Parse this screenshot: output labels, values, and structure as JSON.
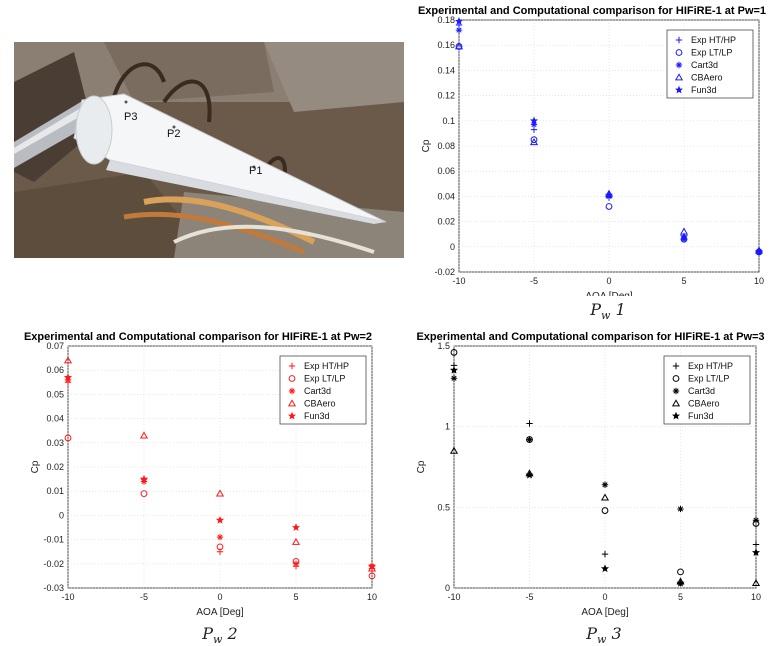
{
  "photo": {
    "labels": [
      "P3",
      "P2",
      "P1"
    ]
  },
  "captions": [
    "Pw 1",
    "Pw 2",
    "Pw 3"
  ],
  "chart_data": [
    {
      "type": "scatter",
      "title": "Experimental and Computational comparison for HIFiRE-1 at Pw=1",
      "xlabel": "AOA [Deg]",
      "ylabel": "Cp",
      "xlim": [
        -10,
        10
      ],
      "ylim": [
        -0.02,
        0.18
      ],
      "xticks": [
        "-10",
        "-5",
        "0",
        "5",
        "10"
      ],
      "yticks": [
        "-0.02",
        "0",
        "0.02",
        "0.04",
        "0.06",
        "0.08",
        "0.1",
        "0.12",
        "0.14",
        "0.16",
        "0.18"
      ],
      "grid": true,
      "legend": "top-right",
      "color": "#1a1aff",
      "x": [
        -10,
        -5,
        0,
        5,
        10
      ],
      "series": [
        {
          "name": "Exp HT/HP",
          "marker": "plus",
          "values": [
            0.176,
            0.093,
            0.039,
            0.006,
            -0.005
          ]
        },
        {
          "name": "Exp LT/LP",
          "marker": "circle",
          "values": [
            0.159,
            0.085,
            0.032,
            0.006,
            -0.004
          ]
        },
        {
          "name": "Cart3d",
          "marker": "asterisk",
          "values": [
            0.172,
            0.097,
            0.04,
            0.006,
            -0.004
          ]
        },
        {
          "name": "CBAero",
          "marker": "triangle",
          "values": [
            0.159,
            0.083,
            0.042,
            0.012,
            -0.003
          ]
        },
        {
          "name": "Fun3d",
          "marker": "star",
          "values": [
            0.179,
            0.1,
            0.041,
            0.008,
            -0.004
          ]
        }
      ]
    },
    {
      "type": "scatter",
      "title": "Experimental and Computational comparison for HIFiRE-1 at Pw=2",
      "xlabel": "AOA [Deg]",
      "ylabel": "Cp",
      "xlim": [
        -10,
        10
      ],
      "ylim": [
        -0.03,
        0.07
      ],
      "xticks": [
        "-10",
        "-5",
        "0",
        "5",
        "10"
      ],
      "yticks": [
        "-0.03",
        "-0.02",
        "-0.01",
        "0",
        "0.01",
        "0.02",
        "0.03",
        "0.04",
        "0.05",
        "0.06",
        "0.07"
      ],
      "grid": true,
      "legend": "top-right",
      "color": "#ff1a1a",
      "x": [
        -10,
        -5,
        0,
        5,
        10
      ],
      "series": [
        {
          "name": "Exp HT/HP",
          "marker": "plus",
          "values": [
            0.055,
            0.015,
            -0.015,
            -0.021,
            -0.022
          ]
        },
        {
          "name": "Exp LT/LP",
          "marker": "circle",
          "values": [
            0.032,
            0.009,
            -0.013,
            -0.019,
            -0.025
          ]
        },
        {
          "name": "Cart3d",
          "marker": "asterisk",
          "values": [
            0.056,
            0.014,
            -0.009,
            -0.02,
            -0.021
          ]
        },
        {
          "name": "CBAero",
          "marker": "triangle",
          "values": [
            0.064,
            0.033,
            0.009,
            -0.011,
            -0.022
          ]
        },
        {
          "name": "Fun3d",
          "marker": "star",
          "values": [
            0.057,
            0.015,
            -0.002,
            -0.005,
            -0.021
          ]
        }
      ]
    },
    {
      "type": "scatter",
      "title": "Experimental and Computational comparison for HIFiRE-1 at Pw=3",
      "xlabel": "AOA [Deg]",
      "ylabel": "Cp",
      "xlim": [
        -10,
        10
      ],
      "ylim": [
        0,
        1.5
      ],
      "xticks": [
        "-10",
        "-5",
        "0",
        "5",
        "10"
      ],
      "yticks": [
        "0",
        "0.5",
        "1",
        "1.5"
      ],
      "grid": true,
      "legend": "top-right",
      "color": "#000000",
      "x": [
        -10,
        -5,
        0,
        5,
        10
      ],
      "series": [
        {
          "name": "Exp HT/HP",
          "marker": "plus",
          "values": [
            1.38,
            1.02,
            0.21,
            0.03,
            0.27
          ]
        },
        {
          "name": "Exp LT/LP",
          "marker": "circle",
          "values": [
            1.46,
            0.92,
            0.48,
            0.1,
            0.4
          ]
        },
        {
          "name": "Cart3d",
          "marker": "asterisk",
          "values": [
            1.3,
            0.92,
            0.64,
            0.49,
            0.42
          ]
        },
        {
          "name": "CBAero",
          "marker": "triangle",
          "values": [
            0.85,
            0.71,
            0.56,
            0.04,
            0.03
          ]
        },
        {
          "name": "Fun3d",
          "marker": "star",
          "values": [
            1.35,
            0.7,
            0.12,
            0.03,
            0.22
          ]
        }
      ]
    }
  ]
}
